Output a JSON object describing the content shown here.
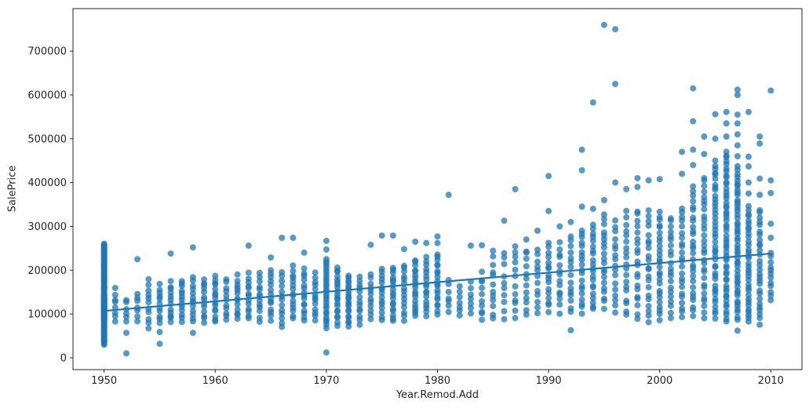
{
  "chart_data": {
    "type": "scatter",
    "title": "",
    "xlabel": "Year.Remod.Add",
    "ylabel": "SalePrice",
    "xlim": [
      1947.2,
      2012.8
    ],
    "ylim": [
      -27000,
      797000
    ],
    "xticks": [
      1950,
      1960,
      1970,
      1980,
      1990,
      2000,
      2010
    ],
    "yticks": [
      0,
      100000,
      200000,
      300000,
      400000,
      500000,
      600000,
      700000
    ],
    "grid": false,
    "legend": null,
    "background": "#ffffff",
    "axis_color": "#262626",
    "marker": {
      "radius": 4,
      "color": "#1f77b4",
      "opacity": 0.75
    },
    "trend_line": {
      "color": "#1f77b4",
      "width": 2.2,
      "x": [
        1950,
        2010
      ],
      "y": [
        107000,
        238000
      ]
    },
    "jitter_seed": 7,
    "clusters": [
      [
        1950,
        115,
        30000,
        262000
      ],
      [
        1950,
        40,
        85000,
        140000
      ],
      [
        1951,
        8,
        79000,
        162000
      ],
      [
        1952,
        6,
        75000,
        140000
      ],
      [
        1953,
        7,
        80000,
        152000
      ],
      [
        1954,
        11,
        64000,
        181000
      ],
      [
        1955,
        11,
        75000,
        172000
      ],
      [
        1956,
        12,
        76000,
        176000
      ],
      [
        1957,
        13,
        80000,
        182000
      ],
      [
        1958,
        13,
        78000,
        186000
      ],
      [
        1959,
        13,
        76000,
        186000
      ],
      [
        1960,
        15,
        78000,
        192000
      ],
      [
        1961,
        11,
        80000,
        186000
      ],
      [
        1962,
        13,
        84000,
        191000
      ],
      [
        1963,
        13,
        85000,
        196000
      ],
      [
        1964,
        13,
        82000,
        196000
      ],
      [
        1965,
        14,
        84000,
        203000
      ],
      [
        1966,
        13,
        62000,
        202000
      ],
      [
        1967,
        15,
        85000,
        212000
      ],
      [
        1968,
        15,
        80000,
        205000
      ],
      [
        1969,
        13,
        84000,
        196000
      ],
      [
        1970,
        26,
        66000,
        228000
      ],
      [
        1971,
        20,
        72000,
        212000
      ],
      [
        1972,
        20,
        70000,
        192000
      ],
      [
        1973,
        13,
        75000,
        187000
      ],
      [
        1974,
        12,
        88000,
        196000
      ],
      [
        1975,
        15,
        84000,
        206000
      ],
      [
        1976,
        18,
        80000,
        212000
      ],
      [
        1977,
        15,
        84000,
        216000
      ],
      [
        1978,
        19,
        90000,
        228000
      ],
      [
        1979,
        17,
        92000,
        232000
      ],
      [
        1980,
        19,
        98000,
        242000
      ],
      [
        1981,
        7,
        95000,
        188000
      ],
      [
        1982,
        7,
        94000,
        165000
      ],
      [
        1983,
        7,
        94000,
        180000
      ],
      [
        1984,
        10,
        80000,
        200000
      ],
      [
        1985,
        12,
        78000,
        250000
      ],
      [
        1986,
        10,
        82000,
        250000
      ],
      [
        1987,
        12,
        84000,
        265000
      ],
      [
        1988,
        12,
        94000,
        255000
      ],
      [
        1989,
        12,
        90000,
        260000
      ],
      [
        1990,
        16,
        104000,
        265000
      ],
      [
        1991,
        14,
        100000,
        270000
      ],
      [
        1992,
        15,
        95000,
        285000
      ],
      [
        1993,
        19,
        100000,
        300000
      ],
      [
        1994,
        21,
        105000,
        310000
      ],
      [
        1995,
        20,
        110000,
        330000
      ],
      [
        1996,
        17,
        100000,
        320000
      ],
      [
        1997,
        19,
        90000,
        340000
      ],
      [
        1998,
        20,
        85000,
        345000
      ],
      [
        1999,
        21,
        80000,
        340000
      ],
      [
        2000,
        26,
        82000,
        340000
      ],
      [
        2001,
        21,
        85000,
        330000
      ],
      [
        2002,
        23,
        88000,
        350000
      ],
      [
        2003,
        28,
        90000,
        395000
      ],
      [
        2004,
        30,
        88000,
        420000
      ],
      [
        2005,
        42,
        85000,
        455000
      ],
      [
        2006,
        52,
        80000,
        475000
      ],
      [
        2007,
        48,
        84000,
        440000
      ],
      [
        2008,
        34,
        78000,
        350000
      ],
      [
        2009,
        28,
        75000,
        345000
      ],
      [
        2010,
        12,
        128000,
        245000
      ]
    ],
    "outlier_points": [
      [
        1952,
        57000
      ],
      [
        1952,
        10000
      ],
      [
        1953,
        225000
      ],
      [
        1955,
        59000
      ],
      [
        1955,
        32000
      ],
      [
        1956,
        238000
      ],
      [
        1958,
        57000
      ],
      [
        1958,
        252000
      ],
      [
        1963,
        256000
      ],
      [
        1965,
        229000
      ],
      [
        1966,
        274000
      ],
      [
        1967,
        274000
      ],
      [
        1968,
        240000
      ],
      [
        1970,
        247000
      ],
      [
        1970,
        267000
      ],
      [
        1970,
        12000
      ],
      [
        1974,
        258000
      ],
      [
        1975,
        279000
      ],
      [
        1976,
        279000
      ],
      [
        1977,
        248000
      ],
      [
        1978,
        265000
      ],
      [
        1979,
        262000
      ],
      [
        1980,
        262000
      ],
      [
        1980,
        277000
      ],
      [
        1981,
        372000
      ],
      [
        1983,
        256000
      ],
      [
        1984,
        257000
      ],
      [
        1986,
        313000
      ],
      [
        1987,
        385000
      ],
      [
        1988,
        270000
      ],
      [
        1989,
        290000
      ],
      [
        1990,
        335000
      ],
      [
        1990,
        415000
      ],
      [
        1991,
        300000
      ],
      [
        1992,
        63000
      ],
      [
        1992,
        310000
      ],
      [
        1993,
        345000
      ],
      [
        1993,
        428000
      ],
      [
        1993,
        475000
      ],
      [
        1994,
        340000
      ],
      [
        1994,
        583000
      ],
      [
        1995,
        360000
      ],
      [
        1995,
        760000
      ],
      [
        1996,
        400000
      ],
      [
        1996,
        625000
      ],
      [
        1996,
        750000
      ],
      [
        1997,
        385000
      ],
      [
        1998,
        390000
      ],
      [
        1998,
        410000
      ],
      [
        1999,
        405000
      ],
      [
        2000,
        408000
      ],
      [
        2002,
        420000
      ],
      [
        2002,
        470000
      ],
      [
        2003,
        440000
      ],
      [
        2003,
        475000
      ],
      [
        2003,
        540000
      ],
      [
        2003,
        615000
      ],
      [
        2004,
        465000
      ],
      [
        2004,
        505000
      ],
      [
        2005,
        500000
      ],
      [
        2005,
        556000
      ],
      [
        2006,
        505000
      ],
      [
        2006,
        535000
      ],
      [
        2006,
        561000
      ],
      [
        2007,
        62000
      ],
      [
        2007,
        460000
      ],
      [
        2007,
        485000
      ],
      [
        2007,
        510000
      ],
      [
        2007,
        535000
      ],
      [
        2007,
        555000
      ],
      [
        2007,
        600000
      ],
      [
        2007,
        612000
      ],
      [
        2008,
        375000
      ],
      [
        2008,
        400000
      ],
      [
        2008,
        437000
      ],
      [
        2008,
        459000
      ],
      [
        2008,
        561000
      ],
      [
        2009,
        372000
      ],
      [
        2009,
        409000
      ],
      [
        2009,
        489000
      ],
      [
        2009,
        505000
      ],
      [
        2010,
        274000
      ],
      [
        2010,
        306000
      ],
      [
        2010,
        376000
      ],
      [
        2010,
        405000
      ],
      [
        2010,
        610000
      ]
    ]
  }
}
